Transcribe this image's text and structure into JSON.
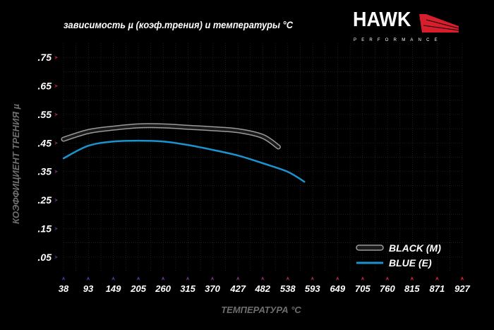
{
  "brand": {
    "name": "HAWK",
    "tagline": "PERFORMANCE",
    "accent": "#d81e2c"
  },
  "chart_data": {
    "type": "line",
    "title": "зависимость µ (коэф.трения) и температуры °C",
    "xlabel": "ТЕМПЕРАТУРА °C",
    "ylabel": "КОЭФФИЦИЕНТ ТРЕНИЯ µ",
    "x_ticks": [
      38,
      93,
      149,
      205,
      260,
      315,
      370,
      427,
      482,
      538,
      593,
      649,
      705,
      760,
      815,
      871,
      927
    ],
    "y_ticks": [
      ".75",
      ".65",
      ".55",
      ".45",
      ".35",
      ".25",
      ".15",
      ".05"
    ],
    "y_tick_values": [
      0.75,
      0.65,
      0.55,
      0.45,
      0.35,
      0.25,
      0.15,
      0.05
    ],
    "xlim": [
      38,
      927
    ],
    "ylim": [
      0,
      0.8
    ],
    "grid": true,
    "legend_position": "bottom-right",
    "series": [
      {
        "name": "BLACK (M)",
        "color": "#1a1a1a",
        "outline": "#9a9a9a",
        "x": [
          38,
          93,
          149,
          205,
          260,
          315,
          370,
          427,
          482,
          517
        ],
        "y": [
          0.463,
          0.49,
          0.502,
          0.51,
          0.51,
          0.505,
          0.5,
          0.493,
          0.473,
          0.436
        ]
      },
      {
        "name": "BLUE (E)",
        "color": "#1b93cf",
        "x": [
          38,
          93,
          149,
          205,
          260,
          315,
          370,
          427,
          482,
          538,
          575
        ],
        "y": [
          0.396,
          0.44,
          0.455,
          0.458,
          0.455,
          0.443,
          0.426,
          0.406,
          0.379,
          0.349,
          0.314
        ]
      }
    ]
  }
}
